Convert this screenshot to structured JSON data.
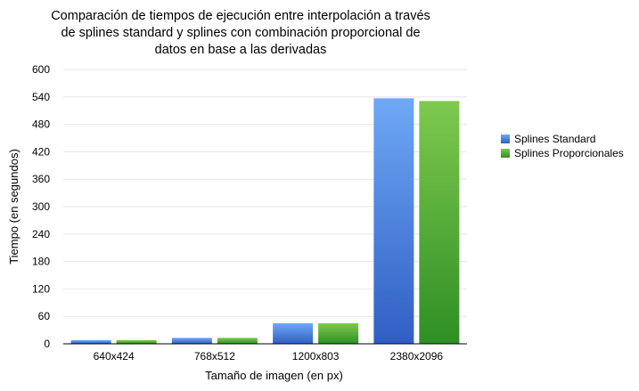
{
  "chart_data": {
    "type": "bar",
    "title_lines": [
      "Comparación de tiempos de ejecución entre interpolación a través",
      "de splines standard y splines con combinación proporcional de",
      "datos en base a las derivadas"
    ],
    "xlabel": "Tamaño de imagen (en px)",
    "ylabel": "Tiempo (en segundos)",
    "categories": [
      "640x424",
      "768x512",
      "1200x803",
      "2380x2096"
    ],
    "ylim": [
      0,
      600
    ],
    "yticks": [
      0,
      60,
      120,
      180,
      240,
      300,
      360,
      420,
      480,
      540,
      600
    ],
    "grid": true,
    "legend_position": "right",
    "series": [
      {
        "name": "Splines Standard",
        "values": [
          8,
          13,
          45,
          537
        ],
        "color_top": "#6fa8f5",
        "color_bottom": "#2f5fc4"
      },
      {
        "name": "Splines Proporcionales",
        "values": [
          8,
          13,
          45,
          531
        ],
        "color_top": "#7ec94e",
        "color_bottom": "#2e8f24"
      }
    ]
  }
}
